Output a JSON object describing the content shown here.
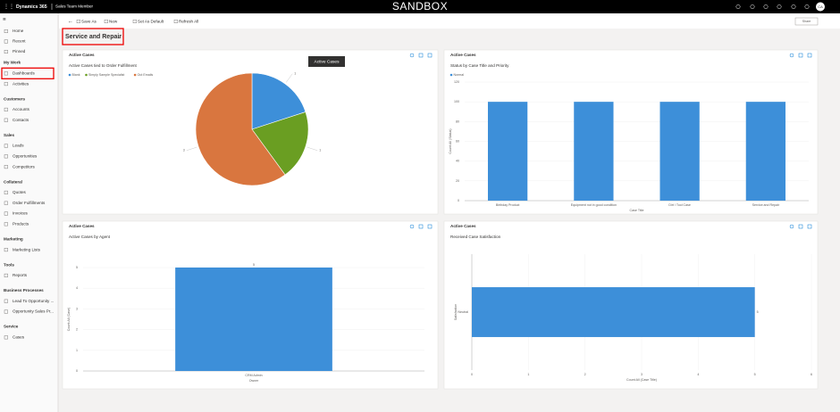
{
  "header": {
    "app": "Dynamics 365",
    "area": "Sales Team Member",
    "banner": "SANDBOX",
    "avatar": "CA"
  },
  "toolbar": {
    "buttons": [
      "Save As",
      "New",
      "Set As Default",
      "Refresh All"
    ],
    "share": "Share"
  },
  "dashboard_title": "Service and Repair",
  "sidebar": {
    "top": [
      "Home",
      "Recent",
      "Pinned"
    ],
    "groups": [
      {
        "name": "My Work",
        "items": [
          "Dashboards",
          "Activities"
        ]
      },
      {
        "name": "Customers",
        "items": [
          "Accounts",
          "Contacts"
        ]
      },
      {
        "name": "Sales",
        "items": [
          "Leads",
          "Opportunities",
          "Competitors"
        ]
      },
      {
        "name": "Collateral",
        "items": [
          "Quotes",
          "Order Fulfillments",
          "Invoices",
          "Products"
        ]
      },
      {
        "name": "Marketing",
        "items": [
          "Marketing Lists"
        ]
      },
      {
        "name": "Tools",
        "items": [
          "Reports"
        ]
      },
      {
        "name": "Business Processes",
        "items": [
          "Lead To Opportunity ...",
          "Opportunity Sales Pr..."
        ]
      },
      {
        "name": "Service",
        "items": [
          "Cases"
        ]
      }
    ]
  },
  "tooltip": "Active Cases",
  "chart_data": [
    {
      "type": "pie",
      "header": "Active Cases",
      "title": "Active Cases tied to Order Fulfillment",
      "categories": [
        "Blank",
        "Simply Sample Specialist",
        "Out Emails"
      ],
      "values": [
        1,
        1,
        3
      ],
      "colors": [
        "#3d8fd9",
        "#6a9e22",
        "#d9763f"
      ],
      "legend": "top-left"
    },
    {
      "type": "bar",
      "header": "Active Cases",
      "title": "Status by Case Title and Priority",
      "categories": [
        "Birthday Product",
        "Equipment not in good condition",
        "Dirt / Tool Case",
        "Service and Repair"
      ],
      "series": [
        {
          "name": "Normal",
          "color": "#3d8fd9",
          "values": [
            100,
            100,
            100,
            100
          ]
        }
      ],
      "ylim": [
        0,
        120
      ],
      "yticks": [
        0,
        20,
        40,
        60,
        80,
        100,
        120
      ],
      "xlabel": "Case Title",
      "ylabel": "Count:All (Status)",
      "grid": true,
      "legend": "top-left"
    },
    {
      "type": "bar",
      "header": "Active Cases",
      "title": "Active Cases by Agent",
      "categories": [
        "CRM Admin"
      ],
      "values": [
        5
      ],
      "color": "#3d8fd9",
      "ylim": [
        0,
        5
      ],
      "yticks": [
        0,
        1,
        2,
        3,
        4,
        5
      ],
      "xlabel": "Owner",
      "ylabel": "Count:All (Case)",
      "grid": true,
      "data_labels": true
    },
    {
      "type": "barh",
      "header": "Active Cases",
      "title": "Received Case Satisfaction",
      "categories": [
        "Neutral"
      ],
      "values": [
        5
      ],
      "color": "#3d8fd9",
      "xlim": [
        0,
        6
      ],
      "xticks": [
        0,
        1,
        2,
        3,
        4,
        5,
        6
      ],
      "xlabel": "Count:All (Case Title)",
      "ylabel": "Satisfaction",
      "grid": true,
      "data_labels": true
    }
  ]
}
